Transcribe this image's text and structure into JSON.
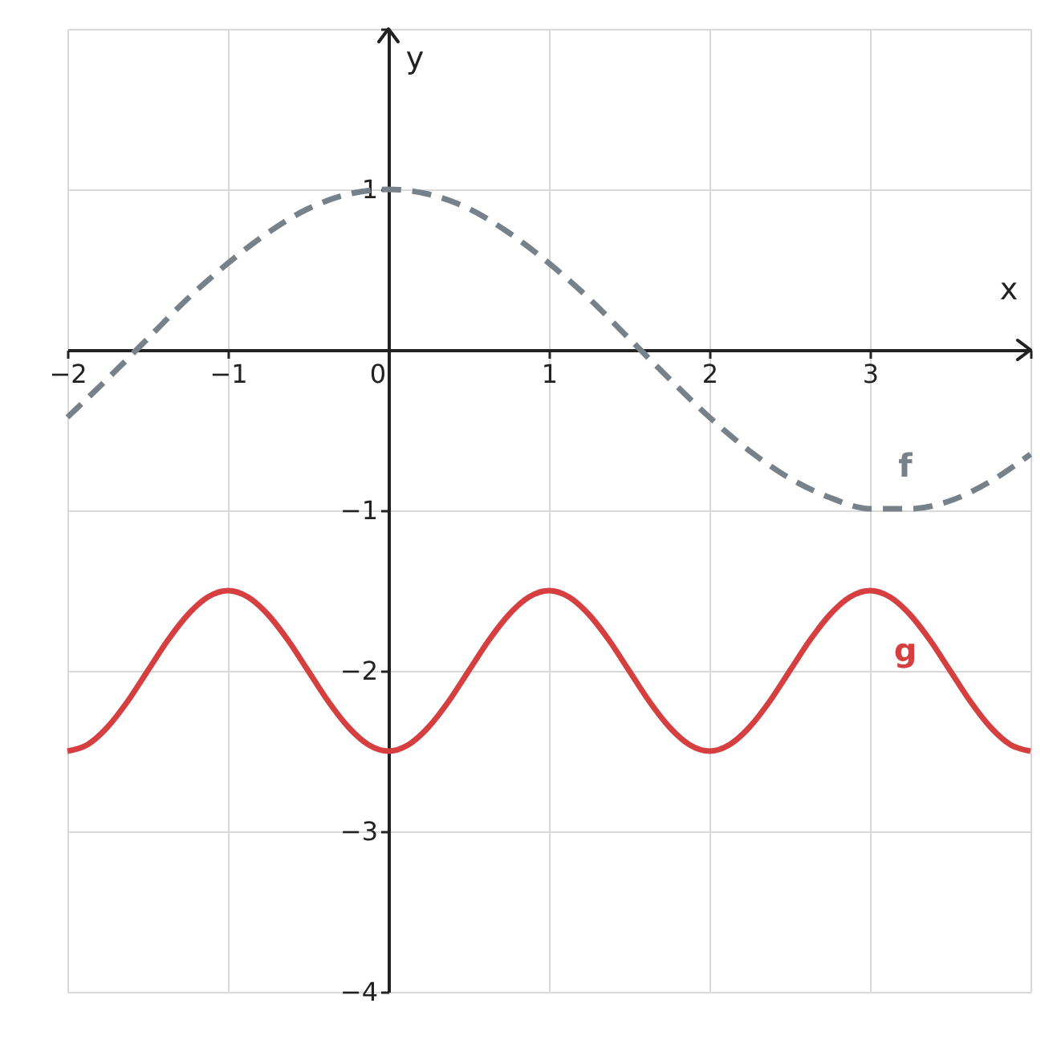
{
  "chart_data": {
    "type": "line",
    "xlabel": "x",
    "ylabel": "y",
    "xlim": [
      -2,
      4
    ],
    "ylim": [
      -4,
      2
    ],
    "xticks": [
      {
        "value": -2,
        "label": "−2"
      },
      {
        "value": -1,
        "label": "−1"
      },
      0,
      1,
      2,
      3,
      {
        "value": 4,
        "label": null
      }
    ],
    "yticks": [
      {
        "value": -4,
        "label": "−4"
      },
      {
        "value": -3,
        "label": "−3"
      },
      {
        "value": -2,
        "label": "−2"
      },
      {
        "value": -1,
        "label": "−1"
      },
      {
        "value": 0,
        "label": null
      },
      1,
      {
        "value": 2,
        "label": null
      }
    ],
    "grid": true,
    "legend": false,
    "series": [
      {
        "name": "f",
        "color": "#77818a",
        "line_style": "dashed",
        "x": [
          -2,
          -1.75,
          -1.5,
          -1.25,
          -1,
          -0.75,
          -0.5,
          -0.25,
          0,
          0.25,
          0.5,
          0.75,
          1,
          1.25,
          1.5,
          1.75,
          2,
          2.25,
          2.5,
          2.75,
          3,
          3.25,
          3.5,
          3.75,
          4
        ],
        "values": [
          -0.42,
          -0.18,
          0.07,
          0.32,
          0.54,
          0.73,
          0.88,
          0.97,
          1,
          0.97,
          0.88,
          0.73,
          0.54,
          0.32,
          0.07,
          -0.18,
          -0.42,
          -0.63,
          -0.8,
          -0.92,
          -0.99,
          -0.99,
          -0.94,
          -0.82,
          -0.65
        ]
      },
      {
        "name": "g",
        "color": "#d63f3f",
        "line_style": "solid",
        "x": [
          -2,
          -1.875,
          -1.75,
          -1.625,
          -1.5,
          -1.375,
          -1.25,
          -1.125,
          -1,
          -0.875,
          -0.75,
          -0.625,
          -0.5,
          -0.375,
          -0.25,
          -0.125,
          0,
          0.125,
          0.25,
          0.375,
          0.5,
          0.625,
          0.75,
          0.875,
          1,
          1.125,
          1.25,
          1.375,
          1.5,
          1.625,
          1.75,
          1.875,
          2,
          2.125,
          2.25,
          2.375,
          2.5,
          2.625,
          2.75,
          2.875,
          3,
          3.125,
          3.25,
          3.375,
          3.5,
          3.625,
          3.75,
          3.875,
          4
        ],
        "values": [
          -2.5,
          -2.46,
          -2.35,
          -2.19,
          -2,
          -1.81,
          -1.65,
          -1.54,
          -1.5,
          -1.54,
          -1.65,
          -1.81,
          -2,
          -2.19,
          -2.35,
          -2.46,
          -2.5,
          -2.46,
          -2.35,
          -2.19,
          -2,
          -1.81,
          -1.65,
          -1.54,
          -1.5,
          -1.54,
          -1.65,
          -1.81,
          -2,
          -2.19,
          -2.35,
          -2.46,
          -2.5,
          -2.46,
          -2.35,
          -2.19,
          -2,
          -1.81,
          -1.65,
          -1.54,
          -1.5,
          -1.54,
          -1.65,
          -1.81,
          -2,
          -2.19,
          -2.35,
          -2.46,
          -2.5
        ]
      }
    ]
  }
}
